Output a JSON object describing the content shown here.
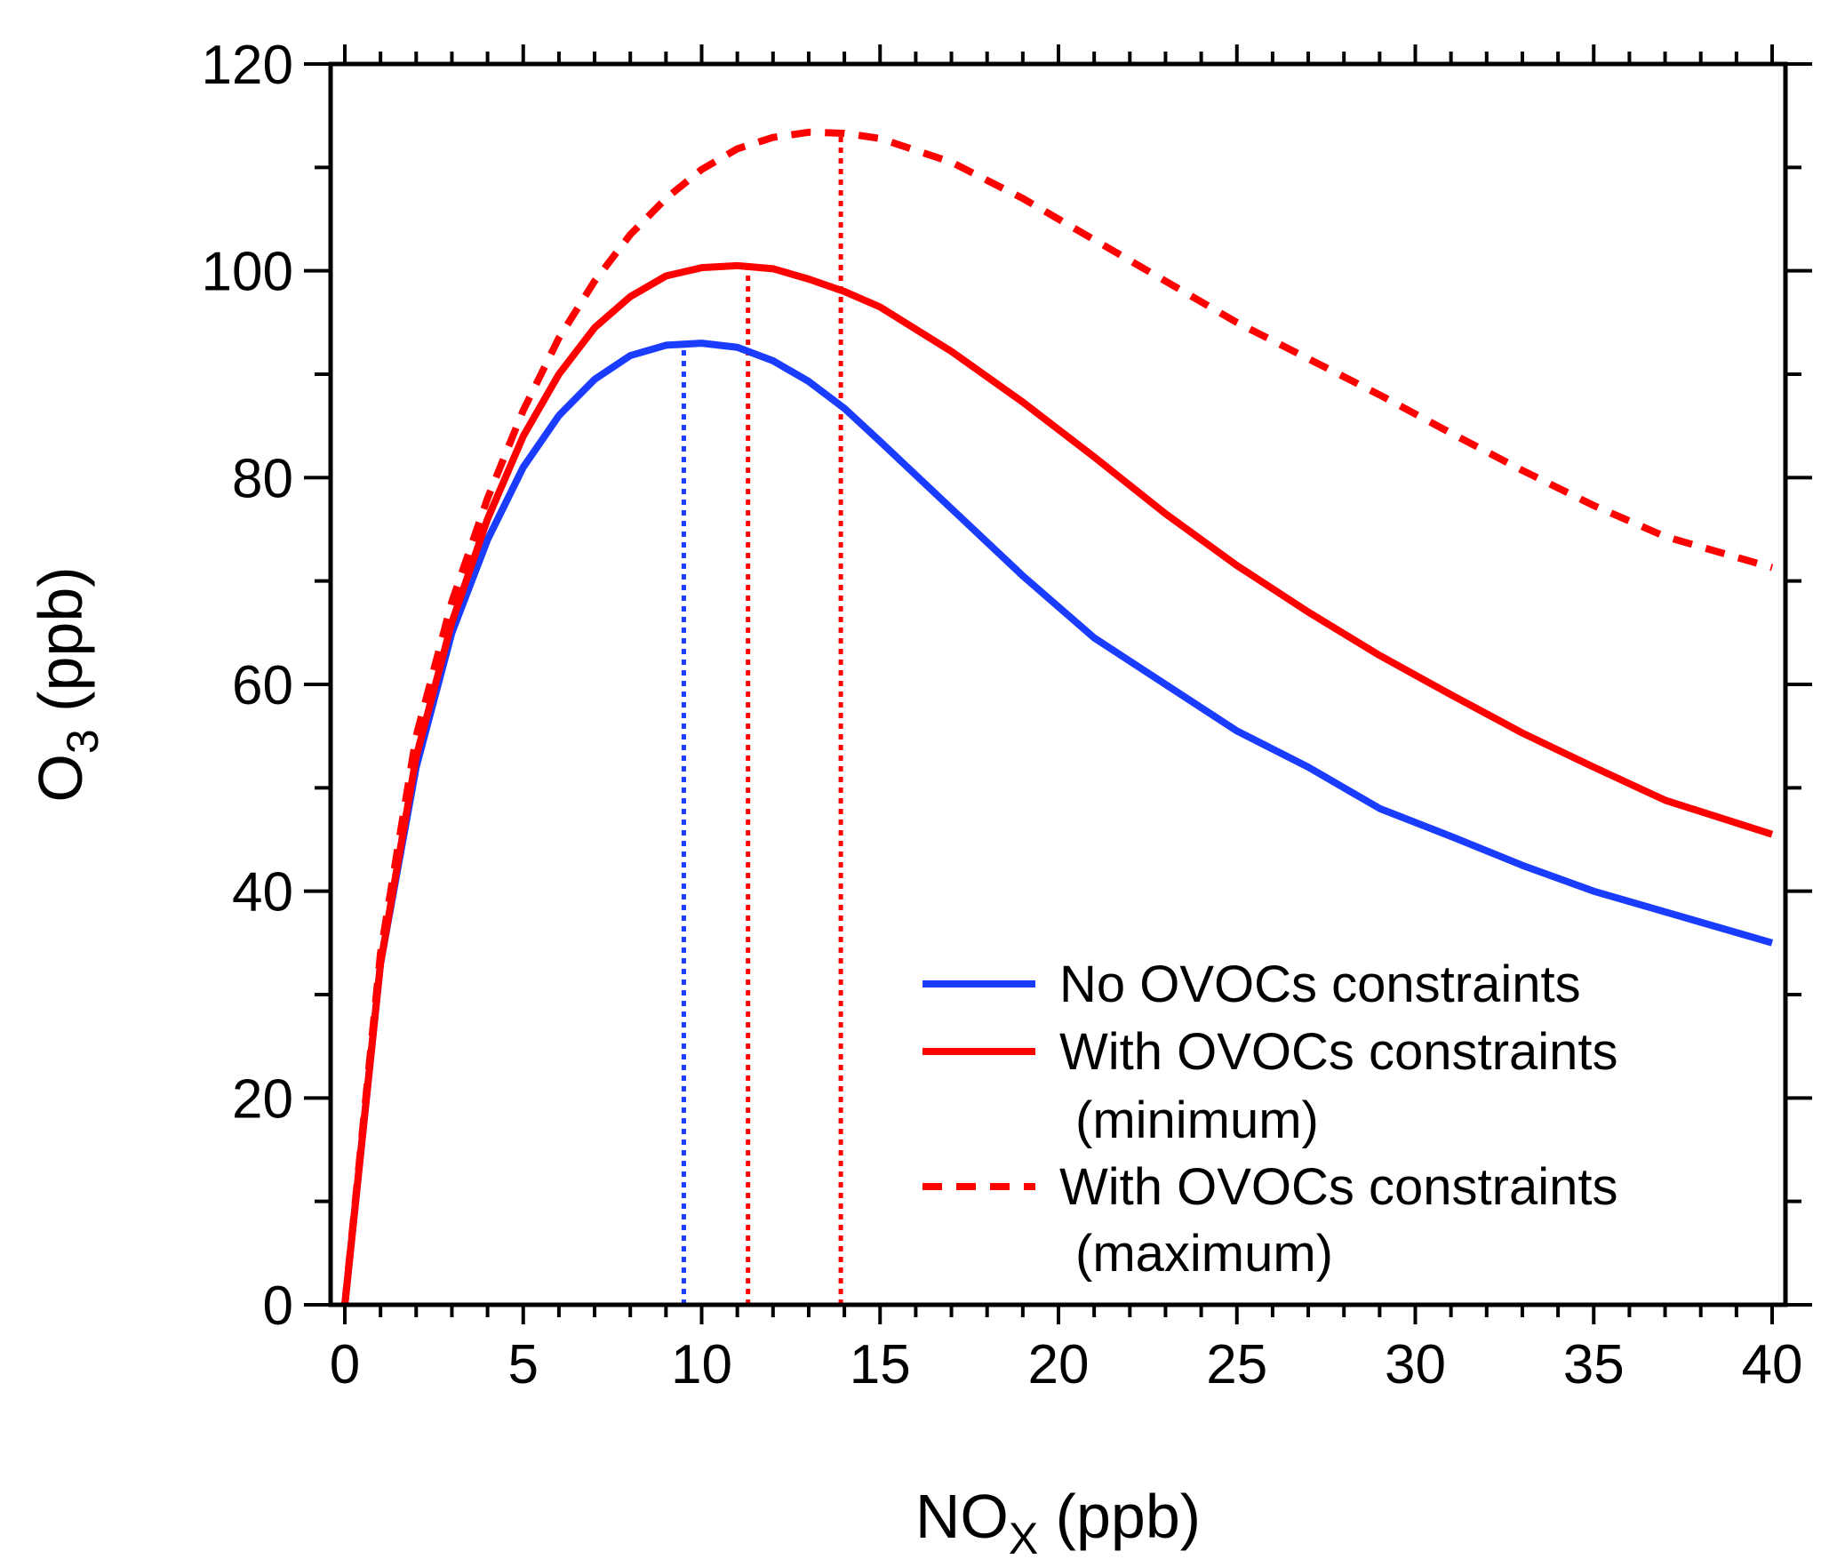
{
  "chart_data": {
    "type": "line",
    "xlabel": {
      "base": "NO",
      "sub": "X",
      "unit": " (ppb)"
    },
    "ylabel": {
      "base": "O",
      "sub": "3",
      "unit": " (ppb)"
    },
    "xlim": [
      0,
      40
    ],
    "ylim": [
      0,
      120
    ],
    "xticks": [
      0,
      5,
      10,
      15,
      20,
      25,
      30,
      35,
      40
    ],
    "yticks": [
      0,
      20,
      40,
      60,
      80,
      100,
      120
    ],
    "grid": false,
    "legend_position": "bottom-right",
    "series": [
      {
        "name": "No OVOCs constraints",
        "color": "#1a3cff",
        "dash": "solid",
        "x": [
          0,
          1,
          2,
          3,
          4,
          5,
          6,
          7,
          8,
          9,
          10,
          11,
          12,
          13,
          14,
          15,
          17,
          19,
          21,
          23,
          25,
          27,
          29,
          31,
          33,
          35,
          37,
          40
        ],
        "y": [
          0,
          33,
          52,
          65,
          74,
          81,
          86,
          89.5,
          91.8,
          92.8,
          93,
          92.6,
          91.3,
          89.3,
          86.7,
          83.5,
          77,
          70.5,
          64.5,
          60,
          55.5,
          52,
          48,
          45.3,
          42.5,
          40,
          38,
          35
        ]
      },
      {
        "name": "With OVOCs constraints",
        "name2": "(minimum)",
        "color": "#ff0000",
        "dash": "solid",
        "x": [
          0,
          1,
          2,
          3,
          4,
          5,
          6,
          7,
          8,
          9,
          10,
          11,
          12,
          13,
          14,
          15,
          17,
          19,
          21,
          23,
          25,
          27,
          29,
          31,
          33,
          35,
          37,
          40
        ],
        "y": [
          0,
          33,
          53,
          66,
          76,
          84,
          90,
          94.5,
          97.5,
          99.5,
          100.3,
          100.5,
          100.2,
          99.2,
          98,
          96.5,
          92.2,
          87.3,
          82,
          76.5,
          71.5,
          67,
          62.8,
          59,
          55.3,
          52,
          48.8,
          45.5
        ]
      },
      {
        "name": "With OVOCs constraints",
        "name2": "(maximum)",
        "color": "#ff0000",
        "dash": "dashed",
        "x": [
          0,
          1,
          2,
          3,
          4,
          5,
          6,
          7,
          8,
          9,
          10,
          11,
          12,
          13,
          14,
          15,
          17,
          19,
          21,
          23,
          25,
          27,
          29,
          31,
          33,
          35,
          37,
          40
        ],
        "y": [
          0,
          34,
          55,
          68,
          78,
          86.5,
          93.5,
          99,
          103.5,
          107,
          109.8,
          111.8,
          112.9,
          113.4,
          113.3,
          112.8,
          110.5,
          107,
          103,
          99,
          95,
          91.5,
          88,
          84.3,
          80.7,
          77.3,
          74.3,
          71.3
        ]
      }
    ],
    "reference_lines": [
      {
        "x": 9.5,
        "y": 93,
        "color": "#1a3cff"
      },
      {
        "x": 11.3,
        "y": 100.5,
        "color": "#ff0000"
      },
      {
        "x": 13.9,
        "y": 113.4,
        "color": "#ff0000"
      }
    ]
  }
}
